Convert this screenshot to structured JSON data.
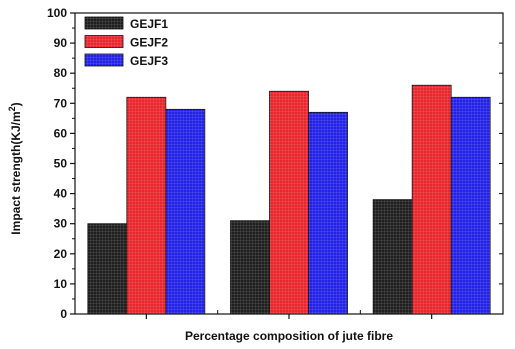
{
  "chart_data": {
    "type": "bar",
    "categories": [
      "",
      "",
      ""
    ],
    "series": [
      {
        "name": "GEJF1",
        "color": "#1f1f1f",
        "values": [
          30,
          31,
          38
        ]
      },
      {
        "name": "GEJF2",
        "color": "#e8262b",
        "values": [
          72,
          74,
          76
        ]
      },
      {
        "name": "GEJF3",
        "color": "#2222e6",
        "values": [
          68,
          67,
          72
        ]
      }
    ],
    "xlabel": "Percentage composition of jute fibre",
    "ylabel": "Impact strength(KJ/m",
    "ylabel_superscript": "2",
    "ylabel_close": ")",
    "ylim": [
      0,
      100
    ],
    "yticks": [
      0,
      10,
      20,
      30,
      40,
      50,
      60,
      70,
      80,
      90,
      100
    ],
    "legend_position": "top-left",
    "grid": false,
    "pattern": "grid-texture"
  }
}
